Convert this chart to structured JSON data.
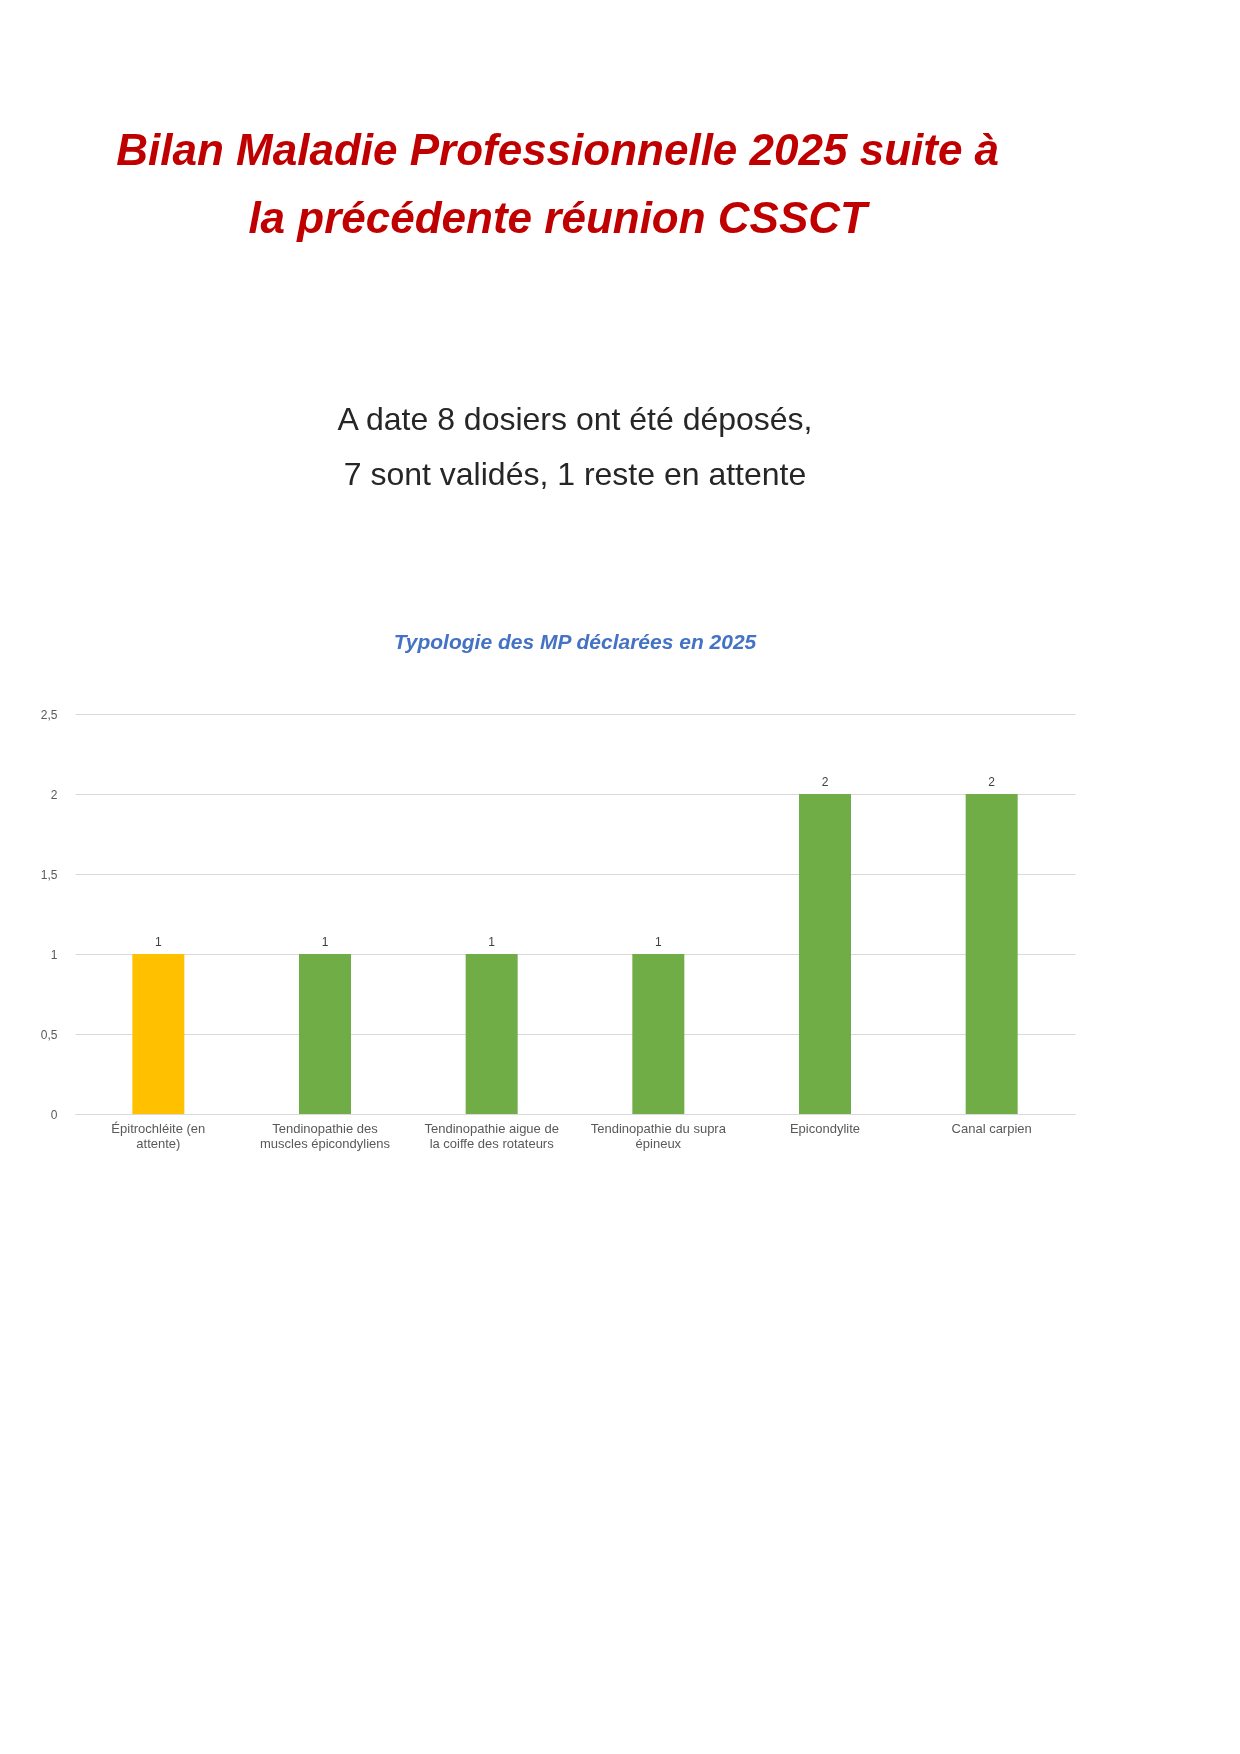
{
  "chart_data": {
    "type": "bar",
    "title": "Bilan Maladie Professionnelle 2025 suite à la précédente réunion CSSCT",
    "subtitle": "Typologie des MP déclarées en 2025",
    "annotations": [
      "A date 8 dosiers ont été déposés,",
      "7  sont validés, 1 reste en attente"
    ],
    "categories": [
      "Épitrochléite (en attente)",
      "Tendinopathie des muscles épicondyliens",
      "Tendinopathie aigue de la coiffe des rotateurs",
      "Tendinopathie du supra épineux",
      "Epicondylite",
      "Canal carpien"
    ],
    "values": [
      1,
      1,
      1,
      1,
      2,
      2
    ],
    "colors": [
      "#ffc000",
      "#70ad47",
      "#70ad47",
      "#70ad47",
      "#70ad47",
      "#70ad47"
    ],
    "ylim": [
      0,
      2.5
    ],
    "yticks": [
      0,
      {
        "value": 0.5,
        "label": "0,5"
      },
      1,
      {
        "value": 1.5,
        "label": "1,5"
      },
      2,
      {
        "value": 2.5,
        "label": "2,5"
      }
    ],
    "grid": "y",
    "data_labels": true
  }
}
